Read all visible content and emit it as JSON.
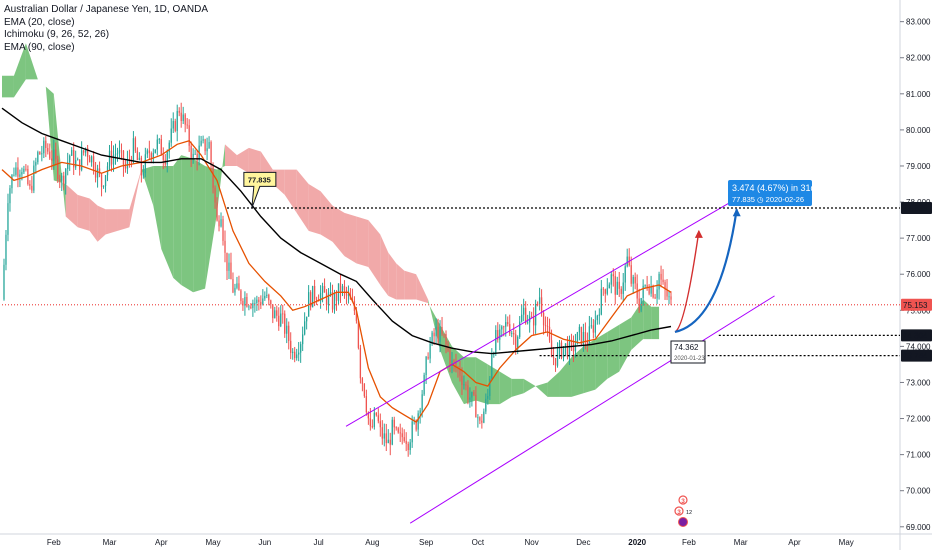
{
  "header": {
    "title": "Australian Dollar / Japanese Yen, 1D, OANDA",
    "indicators": [
      "EMA (20, close)",
      "Ichimoku (9, 26, 52, 26)",
      "EMA (90, close)"
    ]
  },
  "chart_data": {
    "type": "candlestick",
    "title": "Australian Dollar / Japanese Yen, 1D, OANDA",
    "ylim": [
      68.8,
      83.6
    ],
    "y_ticks": [
      69.0,
      70.0,
      71.0,
      72.0,
      73.0,
      74.0,
      75.0,
      76.0,
      77.0,
      78.0,
      79.0,
      80.0,
      81.0,
      82.0,
      83.0
    ],
    "y_tick_labels": [
      "69.000",
      "70.000",
      "71.000",
      "72.000",
      "73.000",
      "74.000",
      "75.000",
      "76.000",
      "77.000",
      "78.000",
      "79.000",
      "80.000",
      "81.000",
      "82.000",
      "83.000"
    ],
    "x_ticks": [
      {
        "label": "Feb",
        "t": 26
      },
      {
        "label": "Mar",
        "t": 54
      },
      {
        "label": "Apr",
        "t": 80
      },
      {
        "label": "May",
        "t": 106
      },
      {
        "label": "Jun",
        "t": 132
      },
      {
        "label": "Jul",
        "t": 159
      },
      {
        "label": "Aug",
        "t": 186
      },
      {
        "label": "Sep",
        "t": 213
      },
      {
        "label": "Oct",
        "t": 239
      },
      {
        "label": "Nov",
        "t": 266
      },
      {
        "label": "Dec",
        "t": 292
      },
      {
        "label": "2020",
        "t": 319
      },
      {
        "label": "Feb",
        "t": 345
      },
      {
        "label": "Mar",
        "t": 371
      },
      {
        "label": "Apr",
        "t": 398
      },
      {
        "label": "May",
        "t": 424
      }
    ],
    "price_anchors": [
      [
        0,
        75.3
      ],
      [
        3,
        78.2
      ],
      [
        6,
        78.9
      ],
      [
        10,
        79.0
      ],
      [
        14,
        78.3
      ],
      [
        18,
        79.3
      ],
      [
        22,
        79.5
      ],
      [
        26,
        79.2
      ],
      [
        30,
        78.6
      ],
      [
        34,
        79.3
      ],
      [
        38,
        79.0
      ],
      [
        42,
        79.5
      ],
      [
        46,
        79.1
      ],
      [
        50,
        78.5
      ],
      [
        54,
        79.2
      ],
      [
        58,
        79.4
      ],
      [
        62,
        78.9
      ],
      [
        66,
        79.5
      ],
      [
        70,
        78.8
      ],
      [
        74,
        79.4
      ],
      [
        78,
        79.6
      ],
      [
        82,
        79.3
      ],
      [
        86,
        80.0
      ],
      [
        89,
        80.6
      ],
      [
        92,
        80.1
      ],
      [
        96,
        79.2
      ],
      [
        100,
        79.5
      ],
      [
        104,
        79.6
      ],
      [
        108,
        77.4
      ],
      [
        110,
        77.8
      ],
      [
        112,
        76.5
      ],
      [
        116,
        75.6
      ],
      [
        120,
        75.4
      ],
      [
        124,
        75.3
      ],
      [
        128,
        75.2
      ],
      [
        132,
        75.4
      ],
      [
        136,
        74.9
      ],
      [
        140,
        74.8
      ],
      [
        144,
        74.2
      ],
      [
        146,
        73.8
      ],
      [
        150,
        74.2
      ],
      [
        154,
        75.3
      ],
      [
        158,
        75.5
      ],
      [
        162,
        75.4
      ],
      [
        166,
        75.2
      ],
      [
        170,
        75.6
      ],
      [
        174,
        75.3
      ],
      [
        178,
        74.9
      ],
      [
        180,
        73.3
      ],
      [
        182,
        72.8
      ],
      [
        185,
        71.6
      ],
      [
        188,
        72.1
      ],
      [
        190,
        71.6
      ],
      [
        194,
        71.3
      ],
      [
        196,
        71.7
      ],
      [
        198,
        71.5
      ],
      [
        200,
        71.4
      ],
      [
        202,
        71.6
      ],
      [
        204,
        71.4
      ],
      [
        206,
        71.7
      ],
      [
        208,
        71.9
      ],
      [
        210,
        72.5
      ],
      [
        212,
        73.0
      ],
      [
        214,
        73.9
      ],
      [
        218,
        74.4
      ],
      [
        222,
        74.2
      ],
      [
        226,
        73.5
      ],
      [
        230,
        73.3
      ],
      [
        234,
        72.7
      ],
      [
        238,
        72.3
      ],
      [
        240,
        71.8
      ],
      [
        242,
        72.2
      ],
      [
        244,
        72.6
      ],
      [
        246,
        73.9
      ],
      [
        248,
        74.2
      ],
      [
        250,
        74.2
      ],
      [
        254,
        74.7
      ],
      [
        258,
        74.2
      ],
      [
        262,
        75.0
      ],
      [
        266,
        74.6
      ],
      [
        270,
        75.4
      ],
      [
        274,
        74.3
      ],
      [
        276,
        73.7
      ],
      [
        278,
        73.7
      ],
      [
        282,
        74.0
      ],
      [
        286,
        73.9
      ],
      [
        290,
        74.3
      ],
      [
        294,
        74.2
      ],
      [
        298,
        74.7
      ],
      [
        302,
        75.6
      ],
      [
        306,
        75.9
      ],
      [
        310,
        75.4
      ],
      [
        314,
        76.4
      ],
      [
        316,
        75.8
      ],
      [
        318,
        75.6
      ],
      [
        320,
        75.2
      ],
      [
        324,
        75.8
      ],
      [
        328,
        75.5
      ],
      [
        330,
        76.0
      ],
      [
        332,
        75.6
      ],
      [
        334,
        75.4
      ],
      [
        336,
        75.15
      ]
    ],
    "ema_20": [
      [
        0,
        78.9
      ],
      [
        6,
        78.6
      ],
      [
        12,
        78.7
      ],
      [
        20,
        78.9
      ],
      [
        30,
        79.1
      ],
      [
        40,
        79.0
      ],
      [
        50,
        78.8
      ],
      [
        60,
        79.0
      ],
      [
        70,
        79.1
      ],
      [
        80,
        79.3
      ],
      [
        88,
        79.6
      ],
      [
        94,
        79.7
      ],
      [
        100,
        79.3
      ],
      [
        108,
        78.6
      ],
      [
        116,
        77.2
      ],
      [
        124,
        76.3
      ],
      [
        132,
        75.8
      ],
      [
        140,
        75.4
      ],
      [
        146,
        75.0
      ],
      [
        152,
        75.1
      ],
      [
        160,
        75.3
      ],
      [
        168,
        75.5
      ],
      [
        174,
        75.5
      ],
      [
        178,
        75.0
      ],
      [
        184,
        73.4
      ],
      [
        190,
        72.6
      ],
      [
        196,
        72.3
      ],
      [
        202,
        72.1
      ],
      [
        208,
        71.9
      ],
      [
        214,
        72.4
      ],
      [
        220,
        73.3
      ],
      [
        226,
        73.5
      ],
      [
        232,
        73.3
      ],
      [
        238,
        73.0
      ],
      [
        244,
        72.9
      ],
      [
        250,
        73.4
      ],
      [
        258,
        73.9
      ],
      [
        266,
        74.3
      ],
      [
        274,
        74.4
      ],
      [
        282,
        74.2
      ],
      [
        290,
        74.1
      ],
      [
        298,
        74.2
      ],
      [
        306,
        74.8
      ],
      [
        314,
        75.4
      ],
      [
        322,
        75.6
      ],
      [
        330,
        75.7
      ],
      [
        336,
        75.5
      ]
    ],
    "ema_90": [
      [
        0,
        80.6
      ],
      [
        10,
        80.2
      ],
      [
        20,
        79.9
      ],
      [
        30,
        79.7
      ],
      [
        40,
        79.5
      ],
      [
        50,
        79.3
      ],
      [
        60,
        79.2
      ],
      [
        70,
        79.1
      ],
      [
        80,
        79.1
      ],
      [
        90,
        79.2
      ],
      [
        100,
        79.2
      ],
      [
        110,
        78.9
      ],
      [
        120,
        78.3
      ],
      [
        130,
        77.6
      ],
      [
        140,
        77.0
      ],
      [
        150,
        76.6
      ],
      [
        160,
        76.3
      ],
      [
        170,
        76.0
      ],
      [
        178,
        75.8
      ],
      [
        186,
        75.3
      ],
      [
        196,
        74.7
      ],
      [
        206,
        74.3
      ],
      [
        216,
        74.1
      ],
      [
        226,
        73.95
      ],
      [
        236,
        73.85
      ],
      [
        246,
        73.8
      ],
      [
        256,
        73.85
      ],
      [
        266,
        73.9
      ],
      [
        276,
        73.95
      ],
      [
        286,
        74.0
      ],
      [
        296,
        74.05
      ],
      [
        306,
        74.15
      ],
      [
        316,
        74.3
      ],
      [
        326,
        74.45
      ],
      [
        336,
        74.55
      ]
    ],
    "ichimoku_cloud": [
      [
        0,
        81.5,
        80.9
      ],
      [
        6,
        81.5,
        80.9
      ],
      [
        12,
        82.4,
        81.4
      ],
      [
        18,
        81.4,
        81.4
      ],
      [
        22,
        81.2,
        81.2
      ],
      [
        26,
        81.0,
        78.6
      ],
      [
        32,
        77.6,
        78.5
      ],
      [
        38,
        77.3,
        78.2
      ],
      [
        44,
        77.2,
        78.1
      ],
      [
        48,
        76.9,
        77.9
      ],
      [
        52,
        77.1,
        77.8
      ],
      [
        58,
        77.2,
        77.8
      ],
      [
        64,
        77.3,
        77.8
      ],
      [
        70,
        78.9,
        78.9
      ],
      [
        76,
        79.0,
        77.9
      ],
      [
        80,
        79.0,
        76.7
      ],
      [
        86,
        79.0,
        75.9
      ],
      [
        90,
        79.3,
        75.7
      ],
      [
        96,
        79.2,
        75.5
      ],
      [
        102,
        79.0,
        75.6
      ],
      [
        108,
        78.9,
        77.7
      ],
      [
        112,
        79.0,
        79.6
      ],
      [
        118,
        79.0,
        79.3
      ],
      [
        124,
        78.8,
        79.5
      ],
      [
        130,
        78.6,
        79.4
      ],
      [
        136,
        78.5,
        78.9
      ],
      [
        142,
        78.2,
        78.9
      ],
      [
        148,
        77.7,
        78.9
      ],
      [
        154,
        77.2,
        78.5
      ],
      [
        160,
        77.1,
        78.3
      ],
      [
        166,
        76.9,
        77.9
      ],
      [
        172,
        76.5,
        77.7
      ],
      [
        178,
        76.3,
        77.6
      ],
      [
        184,
        76.2,
        77.5
      ],
      [
        190,
        75.7,
        77.1
      ],
      [
        194,
        75.4,
        76.6
      ],
      [
        198,
        75.3,
        76.3
      ],
      [
        202,
        75.3,
        76.1
      ],
      [
        208,
        75.3,
        76.0
      ],
      [
        214,
        75.2,
        75.3
      ],
      [
        220,
        74.6,
        73.9
      ],
      [
        226,
        74.0,
        73.0
      ],
      [
        232,
        73.7,
        72.4
      ],
      [
        238,
        73.7,
        72.5
      ],
      [
        244,
        73.5,
        72.4
      ],
      [
        250,
        73.3,
        72.4
      ],
      [
        256,
        73.1,
        72.6
      ],
      [
        262,
        73.1,
        72.7
      ],
      [
        268,
        72.9,
        72.9
      ],
      [
        274,
        73.0,
        72.6
      ],
      [
        280,
        73.3,
        72.6
      ],
      [
        286,
        73.7,
        72.6
      ],
      [
        292,
        74.0,
        72.7
      ],
      [
        298,
        74.2,
        72.8
      ],
      [
        304,
        74.4,
        73.1
      ],
      [
        310,
        74.6,
        73.3
      ],
      [
        316,
        74.8,
        73.9
      ],
      [
        322,
        75.3,
        74.2
      ],
      [
        326,
        75.1,
        74.2
      ],
      [
        330,
        75.1,
        74.2
      ]
    ],
    "channel": {
      "upper": [
        [
          223,
          73.4
        ],
        [
          366,
          78.0
        ]
      ],
      "lower": [
        [
          205,
          69.1
        ],
        [
          388,
          75.4
        ]
      ]
    },
    "horizontal_lines": [
      {
        "price": 77.835,
        "label": "77.835",
        "style": "dotted",
        "color": "#000000",
        "start_t": 113
      },
      {
        "price": 75.153,
        "label": "75.153",
        "style": "dotted",
        "color": "#ef5350",
        "start_t": 0
      },
      {
        "price": 74.304,
        "label": "74.304",
        "style": "dotted",
        "color": "#000000",
        "start_t": 360
      },
      {
        "price": 73.744,
        "label": "73.744",
        "style": "dotted",
        "color": "#000000",
        "start_t": 270
      }
    ],
    "callouts": [
      {
        "text": "77.835",
        "price": 78.6,
        "t": 128,
        "style": "yellow"
      }
    ],
    "measure": {
      "line1": "3.474 (4.67%) in 31d",
      "line2": "77.835 ◷ 2020-02-26",
      "from_price": 74.362,
      "to_price": 77.835
    },
    "marker_box": {
      "line1": "74.362",
      "line2": "2020-01-23"
    },
    "projections": [
      {
        "color": "#d32f2f",
        "from": [
          338,
          74.4
        ],
        "to": [
          350,
          77.2
        ]
      },
      {
        "color": "#1565c0",
        "from": [
          338,
          74.4
        ],
        "to": [
          369,
          77.8
        ]
      }
    ],
    "event_icons": [
      "3",
      "3",
      "12"
    ]
  },
  "colors": {
    "up": "#26a69a",
    "down": "#ef5350",
    "ema20": "#e65100",
    "ema90": "#000000",
    "cloud_bull": "#66bb6a",
    "cloud_bear": "#ef9a9a",
    "channel": "#aa00ff",
    "measure_bg": "#1e88e5",
    "callout_bg": "#fff59d",
    "current_price_bg": "#ef5350"
  }
}
